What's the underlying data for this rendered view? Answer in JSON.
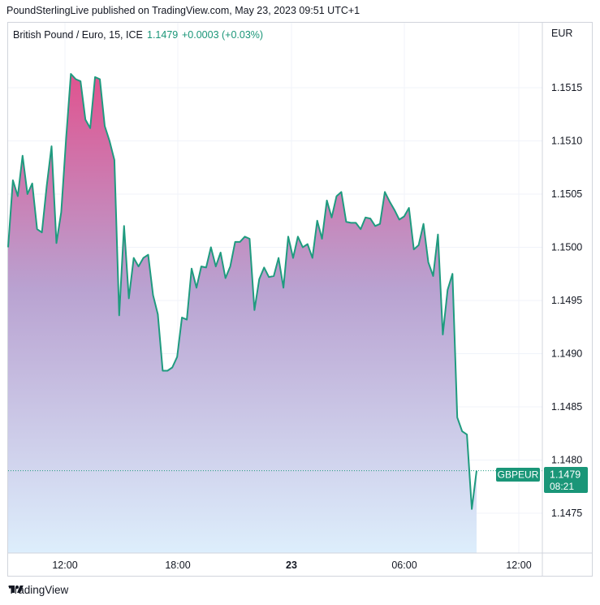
{
  "header": {
    "published": "PoundSterlingLive published on TradingView.com, May 23, 2023 09:51 UTC+1"
  },
  "footer": {
    "brand": "TradingView"
  },
  "colors": {
    "line": "#1f9b7f",
    "area_top": "#e0538f",
    "area_mid": "#b9a2d1",
    "area_bottom": "#ddeefc",
    "last_price_bg": "#1a9678",
    "grid": "#f0f3fa",
    "text": "#131722"
  },
  "chart_data": {
    "type": "area",
    "legend": {
      "symbol": "British Pound / Euro, 15, ICE",
      "price": "1.1479",
      "change": "+0.0003 (+0.03%)"
    },
    "currency": "EUR",
    "y_axis": {
      "ticks": [
        "1.1515",
        "1.1510",
        "1.1505",
        "1.1500",
        "1.1495",
        "1.1490",
        "1.1485",
        "1.1480",
        "1.1475"
      ]
    },
    "x_axis": {
      "ticks": [
        "12:00",
        "18:00",
        "23",
        "06:00",
        "12:00"
      ]
    },
    "last_price": {
      "symbol_tag": "GBPEUR",
      "value": "1.1479",
      "countdown": "08:21"
    },
    "series": [
      {
        "values": [
          1.15,
          1.15063,
          1.15048,
          1.15086,
          1.1505,
          1.1506,
          1.15017,
          1.15014,
          1.15058,
          1.15095,
          1.15004,
          1.15033,
          1.15102,
          1.15163,
          1.15158,
          1.15156,
          1.1512,
          1.15112,
          1.1516,
          1.15158,
          1.15114,
          1.151,
          1.15082,
          1.14936,
          1.1502,
          1.14952,
          1.1499,
          1.14982,
          1.1499,
          1.14993,
          1.14955,
          1.14937,
          1.14884,
          1.14884,
          1.14887,
          1.14897,
          1.14934,
          1.14932,
          1.1498,
          1.14962,
          1.14982,
          1.14981,
          1.15,
          1.14982,
          1.14995,
          1.14971,
          1.14982,
          1.15005,
          1.15005,
          1.1501,
          1.15008,
          1.14941,
          1.1497,
          1.14981,
          1.14972,
          1.14973,
          1.1499,
          1.14962,
          1.1501,
          1.1499,
          1.1501,
          1.15,
          1.15003,
          1.1499,
          1.15025,
          1.15008,
          1.15044,
          1.15028,
          1.15048,
          1.15052,
          1.15024,
          1.15023,
          1.15023,
          1.15017,
          1.15028,
          1.15027,
          1.1502,
          1.15022,
          1.15052,
          1.15043,
          1.15035,
          1.15026,
          1.15029,
          1.15037,
          1.14998,
          1.15002,
          1.15022,
          1.14986,
          1.14973,
          1.15012,
          1.14918,
          1.1496,
          1.14975,
          1.1484,
          1.14827,
          1.14824,
          1.14754,
          1.1479
        ]
      }
    ]
  }
}
